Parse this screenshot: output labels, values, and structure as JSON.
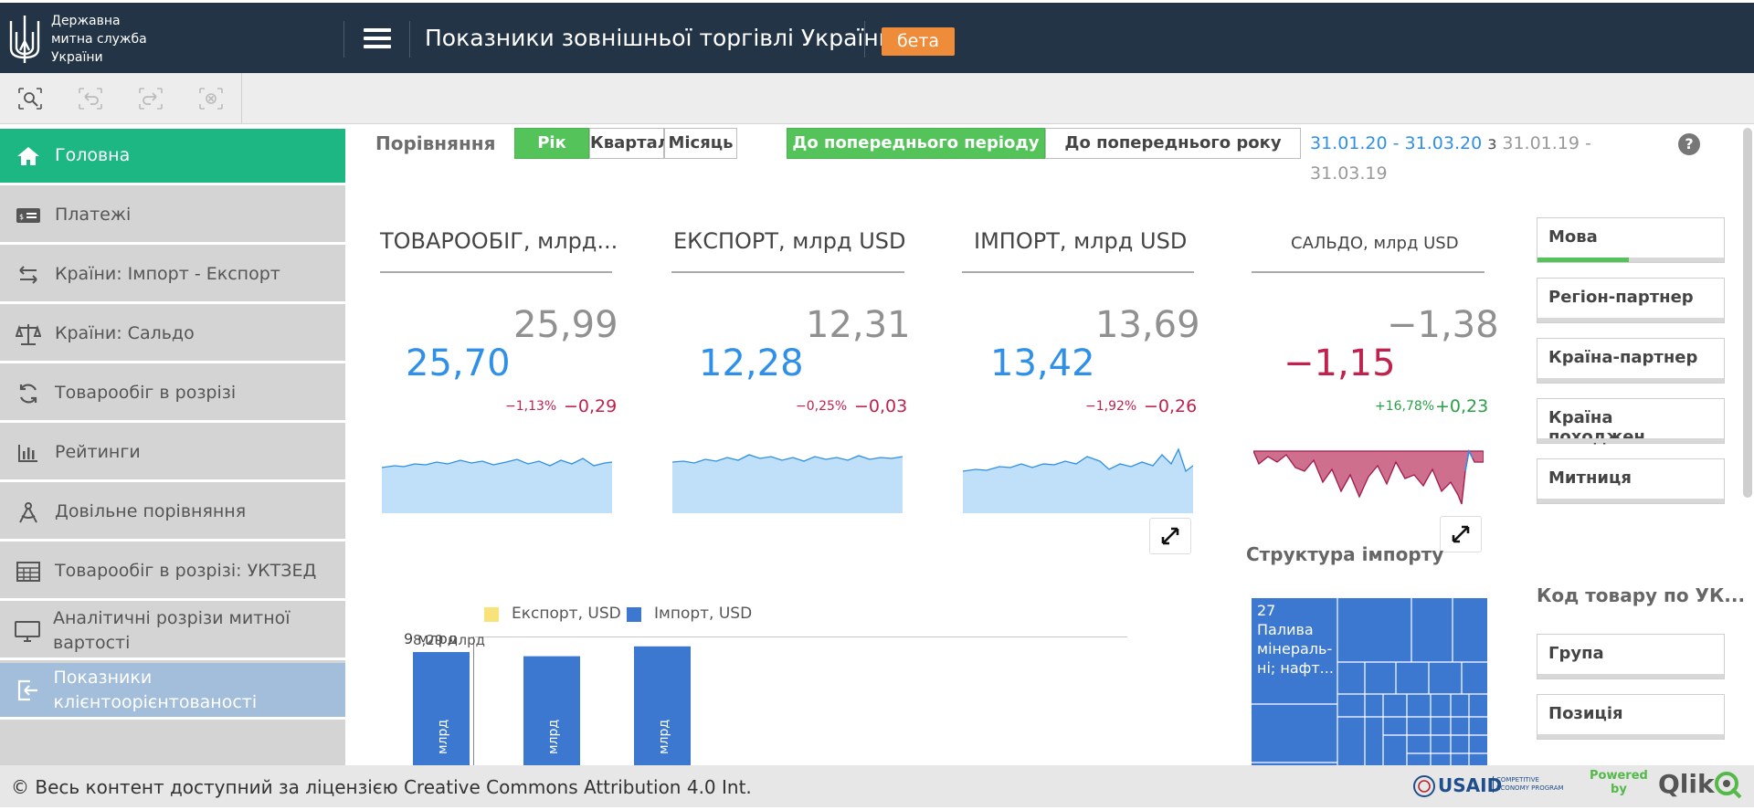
{
  "header": {
    "logo_lines": [
      "Державна",
      "митна служба",
      "України"
    ],
    "app_title": "Показники зовнішньої торгівлі України",
    "badge": "бета"
  },
  "toolbar": {
    "buttons": [
      "smart-search-icon",
      "step-back-icon",
      "step-forward-icon",
      "clear-selections-icon"
    ]
  },
  "sidebar": {
    "items": [
      {
        "label": "Головна",
        "icon": "home-icon"
      },
      {
        "label": "Платежі",
        "icon": "payments-icon"
      },
      {
        "label": "Країни: Імпорт - Експорт",
        "icon": "arrows-swap-icon"
      },
      {
        "label": "Країни: Сальдо",
        "icon": "scales-icon"
      },
      {
        "label": "Товарообіг в розрізі",
        "icon": "refresh-icon"
      },
      {
        "label": "Рейтинги",
        "icon": "bar-chart-icon"
      },
      {
        "label": "Довільне порівняння",
        "icon": "compass-icon"
      },
      {
        "label": "Товарообіг в розрізі: УКТЗЕД",
        "icon": "table-icon"
      },
      {
        "label": "Аналітичні розрізи митної вартості",
        "icon": "monitor-icon"
      },
      {
        "label": "Показники клієнтоорієнтованості",
        "icon": "exit-icon"
      }
    ],
    "active_color": "#1cb783",
    "selected_color": "#a3bedb"
  },
  "comparison": {
    "label": "Порівняння",
    "period_buttons": [
      "Рік",
      "Квартал",
      "Місяць"
    ],
    "period_selected": "Рік",
    "mode_buttons": [
      "До попереднього періоду",
      "До попереднього року"
    ],
    "mode_selected": "До попереднього періоду",
    "range_current": "31.01.20 - 31.03.20",
    "range_joiner": "з",
    "range_prev_a": "31.01.19 -",
    "range_prev_b": "31.03.19",
    "help": "?"
  },
  "kpis": [
    {
      "title": "ТОВАРООБІГ, млрд...",
      "current": "25,70",
      "previous": "25,99",
      "pct": "−1,13%",
      "diff": "−0,29"
    },
    {
      "title": "ЕКСПОРТ, млрд USD",
      "current": "12,28",
      "previous": "12,31",
      "pct": "−0,25%",
      "diff": "−0,03"
    },
    {
      "title": "ІМПОРТ, млрд USD",
      "current": "13,42",
      "previous": "13,69",
      "pct": "−1,92%",
      "diff": "−0,26"
    },
    {
      "title": "САЛЬДО, млрд USD",
      "current": "−1,15",
      "previous": "−1,38",
      "pct": "+16,78%",
      "diff": "+0,23"
    }
  ],
  "colors": {
    "current": "#2e90e8",
    "negative": "#c0224e",
    "positive": "#28a048",
    "previous": "#909090"
  },
  "import_structure": {
    "title": "Структура імпорту",
    "top_tile": {
      "code": "27",
      "name_lines": [
        "Палива",
        "мінераль-",
        "ні; нафт..."
      ]
    }
  },
  "filters": {
    "items": [
      "Мова",
      "Регіон-партнер",
      "Країна-партнер",
      "Країна походжен...",
      "Митниця"
    ],
    "code_label": "Код товару по УК...",
    "code_items": [
      "Група",
      "Позиція"
    ]
  },
  "chart_data": {
    "type": "bar",
    "legend": [
      "Експорт, USD",
      "Імпорт, USD"
    ],
    "series_colors": [
      "#f7e37a",
      "#3c78d0"
    ],
    "y_tick_label": "9 млрд",
    "ylim": [
      0,
      9
    ],
    "series": [
      {
        "name": "Імпорт, USD",
        "values": [
          8.29,
          8.1,
          8.55
        ]
      }
    ],
    "data_labels": [
      "8,29 млрд"
    ],
    "bar_inner_label": "млрд"
  },
  "footer": {
    "license": "© Весь контент доступний за ліцензією Creative Commons Attribution 4.0 Int.",
    "usaid": "USAID",
    "usaid_program": [
      "COMPETITIVE",
      "ECONOMY PROGRAM"
    ],
    "powered": [
      "Powered",
      "by"
    ],
    "qlik": "Qlik"
  }
}
